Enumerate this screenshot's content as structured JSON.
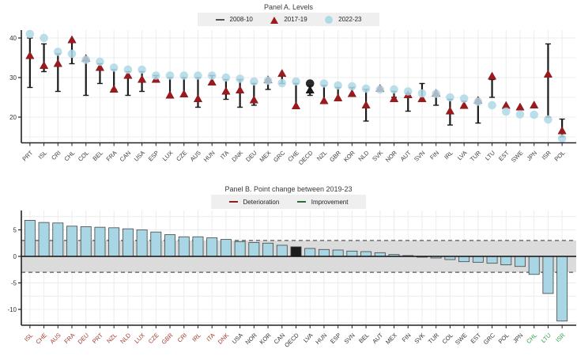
{
  "palette": {
    "triangle_red": "#9c1a1d",
    "circle_blue": "#afd8e8",
    "bar_blue": "#a9d6e4",
    "highlight_black": "#1b1b1b",
    "range_line": "#1a1a1a",
    "band_gray": "#dbdbdb",
    "dashed_line": "#555555",
    "grid": "#ececec",
    "axis": "#222222",
    "label_dark": "#3a3a3a",
    "label_deterioration": "#a0392b",
    "label_improvement": "#2fa14d",
    "legend_deterioration": "#8b2020",
    "legend_improvement": "#2e6b34"
  },
  "chart_data": [
    {
      "type": "scatter",
      "title": "Panel A. Levels",
      "legend": [
        {
          "label": "2008-10",
          "symbol": "dash",
          "color": "#555555"
        },
        {
          "label": "2017-19",
          "symbol": "triangle",
          "color": "#9c1a1d"
        },
        {
          "label": "2022-23",
          "symbol": "circle",
          "color": "#afd8e8"
        }
      ],
      "ylim": [
        13.5,
        43
      ],
      "yticks": [
        20,
        30,
        40
      ],
      "grid_step": 5,
      "series_meaning": {
        "range": "2008-10",
        "triangle": "2017-19",
        "circle": "2022-23"
      },
      "points": [
        {
          "code": "PRT",
          "range": [
            27.5,
            40
          ],
          "v2017": 35.5,
          "v2022": 41
        },
        {
          "code": "ISL",
          "range": [
            31.5,
            38.5
          ],
          "v2017": 33,
          "v2022": 40
        },
        {
          "code": "CRI",
          "range": [
            26.5,
            36
          ],
          "v2017": 33.5,
          "v2022": 36.5
        },
        {
          "code": "CHL",
          "range": [
            33.5,
            39
          ],
          "v2017": 39.5,
          "v2022": 36
        },
        {
          "code": "COL",
          "range": [
            25.5,
            34.5
          ],
          "v2017": 34.8,
          "v2022": 34.5
        },
        {
          "code": "BEL",
          "range": [
            28.5,
            33.5
          ],
          "v2017": 32.5,
          "v2022": 34
        },
        {
          "code": "FRA",
          "range": [
            27,
            32
          ],
          "v2017": 27,
          "v2022": 32.5
        },
        {
          "code": "CAN",
          "range": [
            25.5,
            31.5
          ],
          "v2017": 30.5,
          "v2022": 32
        },
        {
          "code": "USA",
          "range": [
            26.5,
            31.5
          ],
          "v2017": 29.5,
          "v2022": 32
        },
        {
          "code": "ESP",
          "range": [
            29,
            30.5
          ],
          "v2017": 29.5,
          "v2022": 30.5
        },
        {
          "code": "LUX",
          "range": [
            25,
            30
          ],
          "v2017": 25.5,
          "v2022": 30.5
        },
        {
          "code": "CZE",
          "range": [
            25.5,
            30
          ],
          "v2017": 25.8,
          "v2022": 30.5
        },
        {
          "code": "AUS",
          "range": [
            22.5,
            30
          ],
          "v2017": 24.6,
          "v2022": 30.5
        },
        {
          "code": "HUN",
          "range": [
            28.5,
            30.5
          ],
          "v2017": 28.8,
          "v2022": 30.5
        },
        {
          "code": "ITA",
          "range": [
            24.5,
            29.5
          ],
          "v2017": 26.5,
          "v2022": 30
        },
        {
          "code": "DNK",
          "range": [
            22.5,
            29.5
          ],
          "v2017": 26.8,
          "v2022": 29.7
        },
        {
          "code": "DEU",
          "range": [
            23,
            28.5
          ],
          "v2017": 24.3,
          "v2022": 29
        },
        {
          "code": "MEX",
          "range": [
            27,
            29.5
          ],
          "v2017": 29.4,
          "v2022": 29.2
        },
        {
          "code": "GRC",
          "range": [
            28.5,
            30.5
          ],
          "v2017": 31,
          "v2022": 28.6
        },
        {
          "code": "CHE",
          "range": [
            22.5,
            28.5
          ],
          "v2017": 22.8,
          "v2022": 29
        },
        {
          "code": "OECD",
          "range": [
            25.5,
            28
          ],
          "v2017": 26.8,
          "v2022": 28.5,
          "highlight": true
        },
        {
          "code": "NZL",
          "range": [
            23.5,
            28
          ],
          "v2017": 24.1,
          "v2022": 28.5
        },
        {
          "code": "GBR",
          "range": [
            24.5,
            27.5
          ],
          "v2017": 24.8,
          "v2022": 28
        },
        {
          "code": "KOR",
          "range": [
            25.5,
            27.5
          ],
          "v2017": 25.9,
          "v2022": 27.8
        },
        {
          "code": "NLD",
          "range": [
            19,
            27
          ],
          "v2017": 23,
          "v2022": 27.2
        },
        {
          "code": "SVK",
          "range": null,
          "v2017": 27.2,
          "v2022": 27
        },
        {
          "code": "NOR",
          "range": [
            25,
            26.5
          ],
          "v2017": 24.6,
          "v2022": 27
        },
        {
          "code": "AUT",
          "range": [
            21.5,
            26
          ],
          "v2017": 25.6,
          "v2022": 26.5
        },
        {
          "code": "SVN",
          "range": [
            24.5,
            28.5
          ],
          "v2017": 24.6,
          "v2022": 26
        },
        {
          "code": "FIN",
          "range": [
            23,
            25.5
          ],
          "v2017": 26,
          "v2022": 25.9
        },
        {
          "code": "IRL",
          "range": [
            18,
            24.5
          ],
          "v2017": 21.5,
          "v2022": 25
        },
        {
          "code": "LVA",
          "range": [
            22.5,
            24
          ],
          "v2017": 22.9,
          "v2022": 24.7
        },
        {
          "code": "TUR",
          "range": [
            18.5,
            23.5
          ],
          "v2017": 24.2,
          "v2022": 23.9
        },
        {
          "code": "LTU",
          "range": [
            25,
            29.5
          ],
          "v2017": 30.3,
          "v2022": 23
        },
        {
          "code": "EST",
          "range": null,
          "v2017": 22.9,
          "v2022": 21.4
        },
        {
          "code": "SWE",
          "range": null,
          "v2017": 22.5,
          "v2022": 20.7
        },
        {
          "code": "JPN",
          "range": null,
          "v2017": 23,
          "v2022": 20.6
        },
        {
          "code": "ISR",
          "range": [
            20,
            38.5
          ],
          "v2017": 30.8,
          "v2022": 19.4
        },
        {
          "code": "POL",
          "range": [
            15,
            19.5
          ],
          "v2017": 16.5,
          "v2022": 14.6
        }
      ]
    },
    {
      "type": "bar",
      "title": "Panel B. Point change between 2019-23",
      "legend": [
        {
          "label": "Deterioration",
          "color": "#8b2020"
        },
        {
          "label": "Improvement",
          "color": "#2e6b34"
        }
      ],
      "ylim": [
        -13,
        8.9
      ],
      "yticks": [
        5,
        0,
        -5,
        -10
      ],
      "thresholds": [
        3,
        -3
      ],
      "grid_step": 2.5,
      "bars": [
        {
          "code": "ISL",
          "value": 6.8,
          "status": "deterioration"
        },
        {
          "code": "CHE",
          "value": 6.4,
          "status": "deterioration"
        },
        {
          "code": "AUS",
          "value": 6.3,
          "status": "deterioration"
        },
        {
          "code": "FRA",
          "value": 5.7,
          "status": "deterioration"
        },
        {
          "code": "DEU",
          "value": 5.6,
          "status": "deterioration"
        },
        {
          "code": "PRT",
          "value": 5.5,
          "status": "deterioration"
        },
        {
          "code": "NZL",
          "value": 5.4,
          "status": "deterioration"
        },
        {
          "code": "NLD",
          "value": 5.2,
          "status": "deterioration"
        },
        {
          "code": "LUX",
          "value": 5.0,
          "status": "deterioration"
        },
        {
          "code": "CZE",
          "value": 4.6,
          "status": "deterioration"
        },
        {
          "code": "GBR",
          "value": 4.1,
          "status": "deterioration"
        },
        {
          "code": "CRI",
          "value": 3.7,
          "status": "deterioration"
        },
        {
          "code": "IRL",
          "value": 3.7,
          "status": "deterioration"
        },
        {
          "code": "ITA",
          "value": 3.5,
          "status": "deterioration"
        },
        {
          "code": "DNK",
          "value": 3.2,
          "status": "deterioration"
        },
        {
          "code": "USA",
          "value": 2.8,
          "status": "none"
        },
        {
          "code": "NOR",
          "value": 2.6,
          "status": "none"
        },
        {
          "code": "KOR",
          "value": 2.5,
          "status": "none"
        },
        {
          "code": "CAN",
          "value": 2.1,
          "status": "none"
        },
        {
          "code": "OECD",
          "value": 1.8,
          "status": "none",
          "highlight": true
        },
        {
          "code": "LVA",
          "value": 1.5,
          "status": "none"
        },
        {
          "code": "HUN",
          "value": 1.3,
          "status": "none"
        },
        {
          "code": "ESP",
          "value": 1.2,
          "status": "none"
        },
        {
          "code": "SVN",
          "value": 1.0,
          "status": "none"
        },
        {
          "code": "BEL",
          "value": 0.9,
          "status": "none"
        },
        {
          "code": "AUT",
          "value": 0.7,
          "status": "none"
        },
        {
          "code": "MEX",
          "value": 0.35,
          "status": "none"
        },
        {
          "code": "FIN",
          "value": 0.15,
          "status": "none"
        },
        {
          "code": "SVK",
          "value": -0.15,
          "status": "none"
        },
        {
          "code": "TUR",
          "value": -0.3,
          "status": "none"
        },
        {
          "code": "COL",
          "value": -0.6,
          "status": "none"
        },
        {
          "code": "SWE",
          "value": -1.0,
          "status": "none"
        },
        {
          "code": "EST",
          "value": -1.1,
          "status": "none"
        },
        {
          "code": "GRC",
          "value": -1.3,
          "status": "none"
        },
        {
          "code": "POL",
          "value": -1.6,
          "status": "none"
        },
        {
          "code": "JPN",
          "value": -1.9,
          "status": "none"
        },
        {
          "code": "CHL",
          "value": -3.4,
          "status": "improvement"
        },
        {
          "code": "LTU",
          "value": -7.0,
          "status": "improvement"
        },
        {
          "code": "ISR",
          "value": -12.2,
          "status": "improvement"
        }
      ]
    }
  ]
}
